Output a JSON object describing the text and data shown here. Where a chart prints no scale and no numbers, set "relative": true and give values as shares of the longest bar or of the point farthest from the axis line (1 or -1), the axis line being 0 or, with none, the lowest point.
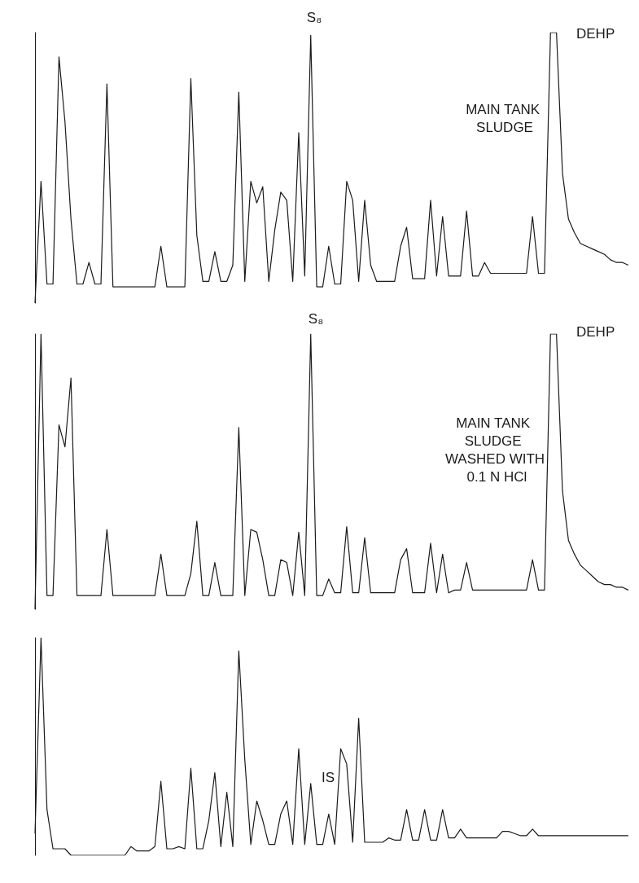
{
  "chart_data": [
    {
      "type": "line",
      "relative": true,
      "color": "#1a1a1a",
      "annotations": [
        "S₈",
        "DEHP",
        "MAIN TANK SLUDGE"
      ],
      "categories": [
        null,
        null,
        null,
        null,
        null,
        null,
        null,
        null,
        null,
        null,
        null,
        null,
        null,
        null,
        null,
        null,
        null,
        null,
        null,
        null,
        null,
        null,
        null,
        null,
        null,
        null,
        null,
        null,
        null,
        null,
        null,
        null,
        null,
        null,
        null,
        null,
        null,
        null,
        null,
        null,
        null,
        null,
        null,
        null,
        null,
        null,
        null,
        null,
        null,
        null,
        null,
        null,
        null,
        null,
        null,
        null,
        null,
        null,
        null,
        null,
        null,
        null,
        null,
        null,
        null,
        null,
        null,
        null,
        null,
        null,
        null,
        null,
        null,
        null,
        null,
        null,
        null,
        null,
        null,
        null,
        null,
        null,
        null,
        null,
        null,
        null,
        null,
        null,
        null,
        null,
        null,
        null,
        null,
        null,
        null,
        null,
        null,
        null,
        null,
        null
      ],
      "values": [
        0,
        0.45,
        0.07,
        0.07,
        0.91,
        0.67,
        0.31,
        0.07,
        0.07,
        0.15,
        0.07,
        0.07,
        0.81,
        0.06,
        0.06,
        0.06,
        0.06,
        0.06,
        0.06,
        0.06,
        0.06,
        0.21,
        0.06,
        0.06,
        0.06,
        0.06,
        0.83,
        0.25,
        0.08,
        0.08,
        0.19,
        0.08,
        0.08,
        0.14,
        0.78,
        0.08,
        0.45,
        0.37,
        0.43,
        0.08,
        0.27,
        0.41,
        0.38,
        0.08,
        0.63,
        0.1,
        0.99,
        0.06,
        0.06,
        0.21,
        0.07,
        0.07,
        0.45,
        0.38,
        0.08,
        0.38,
        0.14,
        0.08,
        0.08,
        0.08,
        0.08,
        0.21,
        0.28,
        0.09,
        0.09,
        0.09,
        0.38,
        0.1,
        0.32,
        0.1,
        0.1,
        0.1,
        0.34,
        0.1,
        0.1,
        0.15,
        0.11,
        0.11,
        0.11,
        0.11,
        0.11,
        0.11,
        0.11,
        0.32,
        0.11,
        0.11,
        1,
        1,
        0.48,
        0.31,
        0.26,
        0.22,
        0.21,
        0.2,
        0.19,
        0.18,
        0.16,
        0.15,
        0.15,
        0.14
      ]
    },
    {
      "type": "line",
      "relative": true,
      "color": "#1a1a1a",
      "annotations": [
        "S₈",
        "DEHP",
        "MAIN TANK SLUDGE WASHED WITH 0.1 N HCl"
      ],
      "categories": [
        null,
        null,
        null,
        null,
        null,
        null,
        null,
        null,
        null,
        null,
        null,
        null,
        null,
        null,
        null,
        null,
        null,
        null,
        null,
        null,
        null,
        null,
        null,
        null,
        null,
        null,
        null,
        null,
        null,
        null,
        null,
        null,
        null,
        null,
        null,
        null,
        null,
        null,
        null,
        null,
        null,
        null,
        null,
        null,
        null,
        null,
        null,
        null,
        null,
        null,
        null,
        null,
        null,
        null,
        null,
        null,
        null,
        null,
        null,
        null,
        null,
        null,
        null,
        null,
        null,
        null,
        null,
        null,
        null,
        null,
        null,
        null,
        null,
        null,
        null,
        null,
        null,
        null,
        null,
        null,
        null,
        null,
        null,
        null,
        null,
        null,
        null,
        null,
        null,
        null,
        null,
        null,
        null,
        null,
        null,
        null,
        null,
        null,
        null,
        null
      ],
      "values": [
        0,
        1,
        0.05,
        0.05,
        0.67,
        0.59,
        0.84,
        0.05,
        0.05,
        0.05,
        0.05,
        0.05,
        0.29,
        0.05,
        0.05,
        0.05,
        0.05,
        0.05,
        0.05,
        0.05,
        0.05,
        0.2,
        0.05,
        0.05,
        0.05,
        0.05,
        0.13,
        0.32,
        0.05,
        0.05,
        0.17,
        0.05,
        0.05,
        0.05,
        0.66,
        0.05,
        0.29,
        0.28,
        0.18,
        0.05,
        0.05,
        0.18,
        0.17,
        0.05,
        0.28,
        0.05,
        1,
        0.05,
        0.05,
        0.11,
        0.06,
        0.06,
        0.3,
        0.06,
        0.06,
        0.26,
        0.06,
        0.06,
        0.06,
        0.06,
        0.06,
        0.18,
        0.22,
        0.06,
        0.06,
        0.06,
        0.24,
        0.06,
        0.2,
        0.06,
        0.07,
        0.07,
        0.17,
        0.07,
        0.07,
        0.07,
        0.07,
        0.07,
        0.07,
        0.07,
        0.07,
        0.07,
        0.07,
        0.18,
        0.07,
        0.07,
        1,
        1,
        0.43,
        0.25,
        0.2,
        0.16,
        0.14,
        0.12,
        0.1,
        0.09,
        0.09,
        0.08,
        0.08,
        0.07
      ]
    },
    {
      "type": "line",
      "relative": true,
      "color": "#1a1a1a",
      "annotations": [
        "IS"
      ],
      "categories": [
        null,
        null,
        null,
        null,
        null,
        null,
        null,
        null,
        null,
        null,
        null,
        null,
        null,
        null,
        null,
        null,
        null,
        null,
        null,
        null,
        null,
        null,
        null,
        null,
        null,
        null,
        null,
        null,
        null,
        null,
        null,
        null,
        null,
        null,
        null,
        null,
        null,
        null,
        null,
        null,
        null,
        null,
        null,
        null,
        null,
        null,
        null,
        null,
        null,
        null,
        null,
        null,
        null,
        null,
        null,
        null,
        null,
        null,
        null,
        null,
        null,
        null,
        null,
        null,
        null,
        null,
        null,
        null,
        null,
        null,
        null,
        null,
        null,
        null,
        null,
        null,
        null,
        null,
        null,
        null,
        null,
        null,
        null,
        null,
        null,
        null,
        null,
        null,
        null,
        null,
        null,
        null,
        null,
        null,
        null,
        null,
        null,
        null,
        null,
        null
      ],
      "values": [
        0.1,
        1,
        0.21,
        0.03,
        0.03,
        0.03,
        0,
        0,
        0,
        0,
        0,
        0,
        0,
        0,
        0,
        0,
        0.04,
        0.02,
        0.02,
        0.02,
        0.04,
        0.34,
        0.03,
        0.03,
        0.04,
        0.03,
        0.4,
        0.03,
        0.03,
        0.16,
        0.38,
        0.04,
        0.29,
        0.04,
        0.94,
        0.44,
        0.05,
        0.25,
        0.16,
        0.05,
        0.05,
        0.19,
        0.25,
        0.05,
        0.49,
        0.05,
        0.33,
        0.05,
        0.05,
        0.19,
        0.05,
        0.49,
        0.42,
        0.06,
        0.63,
        0.06,
        0.06,
        0.06,
        0.06,
        0.08,
        0.07,
        0.07,
        0.21,
        0.07,
        0.07,
        0.21,
        0.07,
        0.07,
        0.21,
        0.08,
        0.08,
        0.12,
        0.08,
        0.08,
        0.08,
        0.08,
        0.08,
        0.08,
        0.11,
        0.11,
        0.1,
        0.09,
        0.09,
        0.12,
        0.09,
        0.09,
        0.09,
        0.09,
        0.09,
        0.09,
        0.09,
        0.09,
        0.09,
        0.09,
        0.09,
        0.09,
        0.09,
        0.09,
        0.09,
        0.09
      ]
    }
  ]
}
